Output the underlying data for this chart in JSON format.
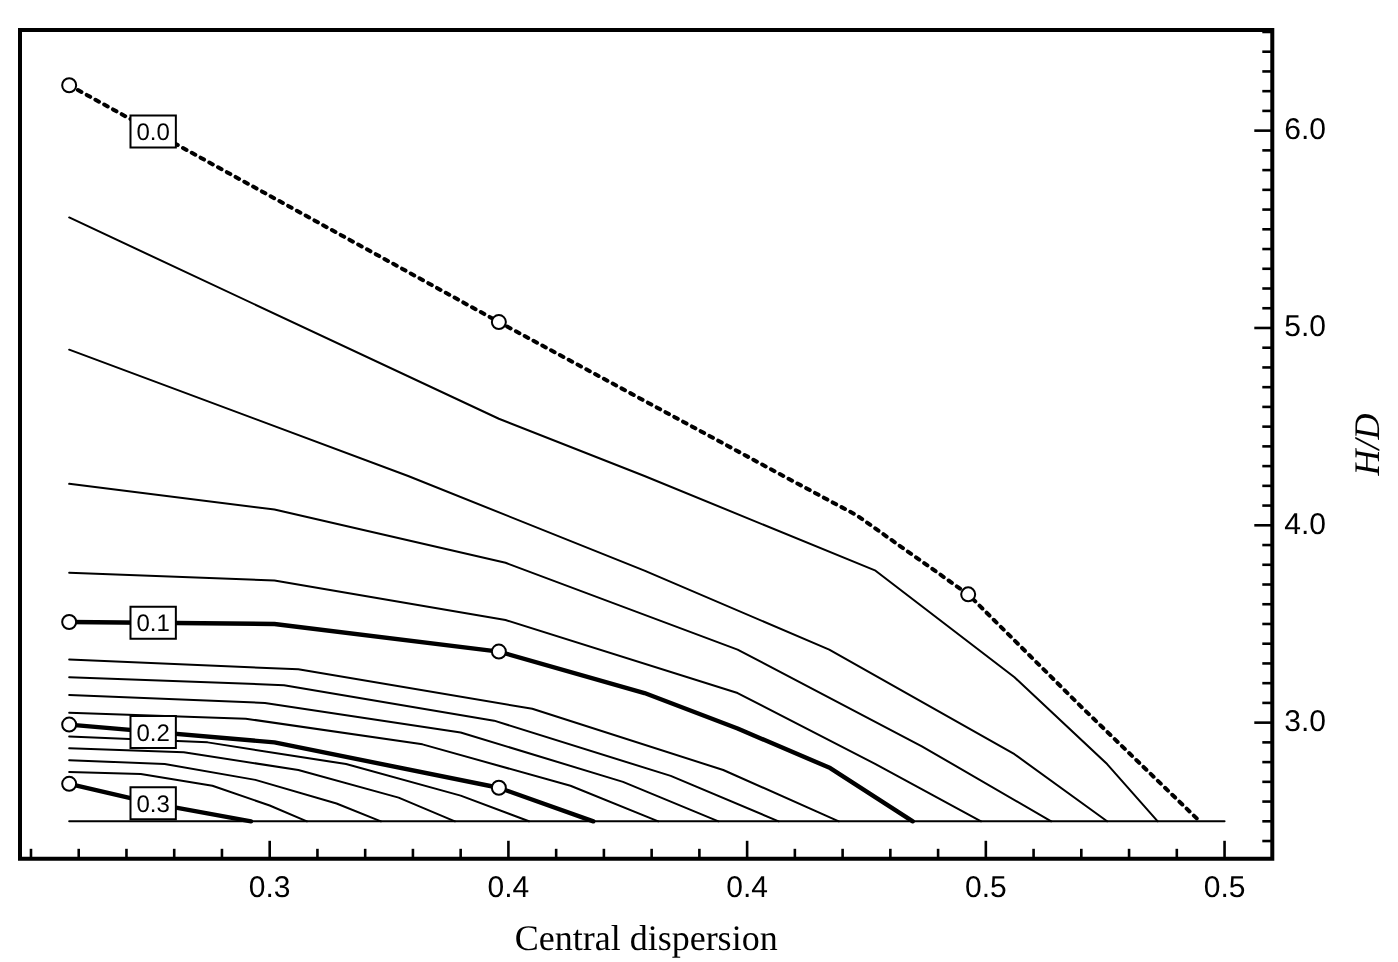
{
  "chart_data": {
    "type": "line",
    "xlabel": "Central dispersion",
    "ylabel": "H/D",
    "xlim": [
      0.2477,
      0.51
    ],
    "ylim": [
      2.31,
      6.51
    ],
    "xticks": [
      {
        "value": 0.25,
        "label": null
      },
      {
        "value": 0.26,
        "label": null
      },
      {
        "value": 0.27,
        "label": null
      },
      {
        "value": 0.28,
        "label": null
      },
      {
        "value": 0.29,
        "label": null
      },
      {
        "value": 0.3,
        "label": "0.3"
      },
      {
        "value": 0.31,
        "label": null
      },
      {
        "value": 0.32,
        "label": null
      },
      {
        "value": 0.33,
        "label": null
      },
      {
        "value": 0.34,
        "label": null
      },
      {
        "value": 0.35,
        "label": "0.4"
      },
      {
        "value": 0.36,
        "label": null
      },
      {
        "value": 0.37,
        "label": null
      },
      {
        "value": 0.38,
        "label": null
      },
      {
        "value": 0.39,
        "label": null
      },
      {
        "value": 0.4,
        "label": "0.4"
      },
      {
        "value": 0.41,
        "label": null
      },
      {
        "value": 0.42,
        "label": null
      },
      {
        "value": 0.43,
        "label": null
      },
      {
        "value": 0.44,
        "label": null
      },
      {
        "value": 0.45,
        "label": "0.5"
      },
      {
        "value": 0.46,
        "label": null
      },
      {
        "value": 0.47,
        "label": null
      },
      {
        "value": 0.48,
        "label": null
      },
      {
        "value": 0.49,
        "label": null
      },
      {
        "value": 0.5,
        "label": "0.5"
      }
    ],
    "yticks": [
      {
        "value": 2.4,
        "label": null
      },
      {
        "value": 2.5,
        "label": null
      },
      {
        "value": 2.6,
        "label": null
      },
      {
        "value": 2.7,
        "label": null
      },
      {
        "value": 2.8,
        "label": null
      },
      {
        "value": 2.9,
        "label": null
      },
      {
        "value": 3,
        "label": "3.0"
      },
      {
        "value": 3.1,
        "label": null
      },
      {
        "value": 3.2,
        "label": null
      },
      {
        "value": 3.3,
        "label": null
      },
      {
        "value": 3.4,
        "label": null
      },
      {
        "value": 3.5,
        "label": null
      },
      {
        "value": 3.6,
        "label": null
      },
      {
        "value": 3.7,
        "label": null
      },
      {
        "value": 3.8,
        "label": null
      },
      {
        "value": 3.9,
        "label": null
      },
      {
        "value": 4,
        "label": "4.0"
      },
      {
        "value": 4.1,
        "label": null
      },
      {
        "value": 4.2,
        "label": null
      },
      {
        "value": 4.3,
        "label": null
      },
      {
        "value": 4.4,
        "label": null
      },
      {
        "value": 4.5,
        "label": null
      },
      {
        "value": 4.6,
        "label": null
      },
      {
        "value": 4.7,
        "label": null
      },
      {
        "value": 4.8,
        "label": null
      },
      {
        "value": 4.9,
        "label": null
      },
      {
        "value": 5,
        "label": "5.0"
      },
      {
        "value": 5.1,
        "label": null
      },
      {
        "value": 5.2,
        "label": null
      },
      {
        "value": 5.3,
        "label": null
      },
      {
        "value": 5.4,
        "label": null
      },
      {
        "value": 5.5,
        "label": null
      },
      {
        "value": 5.6,
        "label": null
      },
      {
        "value": 5.7,
        "label": null
      },
      {
        "value": 5.8,
        "label": null
      },
      {
        "value": 5.9,
        "label": null
      },
      {
        "value": 6,
        "label": "6.0"
      },
      {
        "value": 6.1,
        "label": null
      },
      {
        "value": 6.2,
        "label": null
      },
      {
        "value": 6.3,
        "label": null
      },
      {
        "value": 6.4,
        "label": null
      },
      {
        "value": 6.5,
        "label": null
      }
    ],
    "series": [
      {
        "name": "0.0",
        "color": "#000000",
        "line_style": "dotted",
        "x": [
          0.258,
          0.348,
          0.4076,
          0.423,
          0.4463,
          0.47,
          0.4948
        ],
        "values": [
          6.23,
          5.03,
          4.25,
          4.05,
          3.65,
          3.08,
          2.5
        ]
      },
      {
        "color": "#000000",
        "x": [
          0.258,
          0.348,
          0.3785,
          0.4269,
          0.456,
          0.4754,
          0.486
        ],
        "values": [
          5.56,
          4.54,
          4.25,
          3.77,
          3.23,
          2.79,
          2.5
        ]
      },
      {
        "color": "#000000",
        "x": [
          0.258,
          0.329,
          0.3785,
          0.4172,
          0.456,
          0.4754
        ],
        "values": [
          4.89,
          4.25,
          3.77,
          3.37,
          2.84,
          2.5
        ]
      },
      {
        "color": "#000000",
        "x": [
          0.258,
          0.301,
          0.3494,
          0.398,
          0.4366,
          0.4637
        ],
        "values": [
          4.21,
          4.08,
          3.81,
          3.37,
          2.88,
          2.5
        ]
      },
      {
        "color": "#000000",
        "x": [
          0.258,
          0.301,
          0.3494,
          0.398,
          0.4269,
          0.449
        ],
        "values": [
          3.76,
          3.72,
          3.52,
          3.15,
          2.79,
          2.5
        ]
      },
      {
        "name": "0.1",
        "color": "#000000",
        "x": [
          0.258,
          0.301,
          0.348,
          0.3785,
          0.398,
          0.4174,
          0.4347
        ],
        "values": [
          3.51,
          3.5,
          3.36,
          3.15,
          2.97,
          2.77,
          2.5
        ]
      },
      {
        "color": "#000000",
        "x": [
          0.258,
          0.306,
          0.355,
          0.395,
          0.4192
        ],
        "values": [
          3.32,
          3.27,
          3.07,
          2.76,
          2.5
        ]
      },
      {
        "color": "#000000",
        "x": [
          0.258,
          0.303,
          0.347,
          0.384,
          0.4066
        ],
        "values": [
          3.23,
          3.19,
          3.01,
          2.73,
          2.5
        ]
      },
      {
        "color": "#000000",
        "x": [
          0.258,
          0.299,
          0.34,
          0.374,
          0.394
        ],
        "values": [
          3.14,
          3.1,
          2.95,
          2.7,
          2.5
        ]
      },
      {
        "color": "#000000",
        "x": [
          0.258,
          0.295,
          0.332,
          0.363,
          0.3814
        ],
        "values": [
          3.05,
          3.02,
          2.89,
          2.68,
          2.5
        ]
      },
      {
        "name": "0.2",
        "color": "#000000",
        "x": [
          0.258,
          0.301,
          0.348,
          0.3678
        ],
        "values": [
          2.99,
          2.9,
          2.67,
          2.5
        ]
      },
      {
        "color": "#000000",
        "x": [
          0.258,
          0.287,
          0.316,
          0.34,
          0.3543
        ],
        "values": [
          2.93,
          2.9,
          2.79,
          2.63,
          2.5
        ]
      },
      {
        "color": "#000000",
        "x": [
          0.258,
          0.282,
          0.306,
          0.327,
          0.3388
        ],
        "values": [
          2.87,
          2.85,
          2.76,
          2.62,
          2.5
        ]
      },
      {
        "color": "#000000",
        "x": [
          0.258,
          0.278,
          0.297,
          0.314,
          0.3233
        ],
        "values": [
          2.81,
          2.79,
          2.71,
          2.59,
          2.5
        ]
      },
      {
        "color": "#000000",
        "x": [
          0.258,
          0.273,
          0.288,
          0.3,
          0.3078
        ],
        "values": [
          2.75,
          2.74,
          2.68,
          2.58,
          2.5
        ]
      },
      {
        "name": "0.3",
        "color": "#000000",
        "x": [
          0.258,
          0.2758,
          0.2961
        ],
        "values": [
          2.69,
          2.59,
          2.5
        ]
      },
      {
        "color": "#000000",
        "x": [
          0.258,
          0.5
        ],
        "values": [
          2.5,
          2.5
        ]
      },
      {
        "type": "scatter",
        "marker": "circle",
        "color": "#000000",
        "x": [
          0.258,
          0.348,
          0.4463,
          0.258,
          0.348,
          0.258,
          0.348,
          0.258
        ],
        "values": [
          6.23,
          5.03,
          3.65,
          3.51,
          3.36,
          2.99,
          2.67,
          2.69
        ]
      }
    ]
  }
}
